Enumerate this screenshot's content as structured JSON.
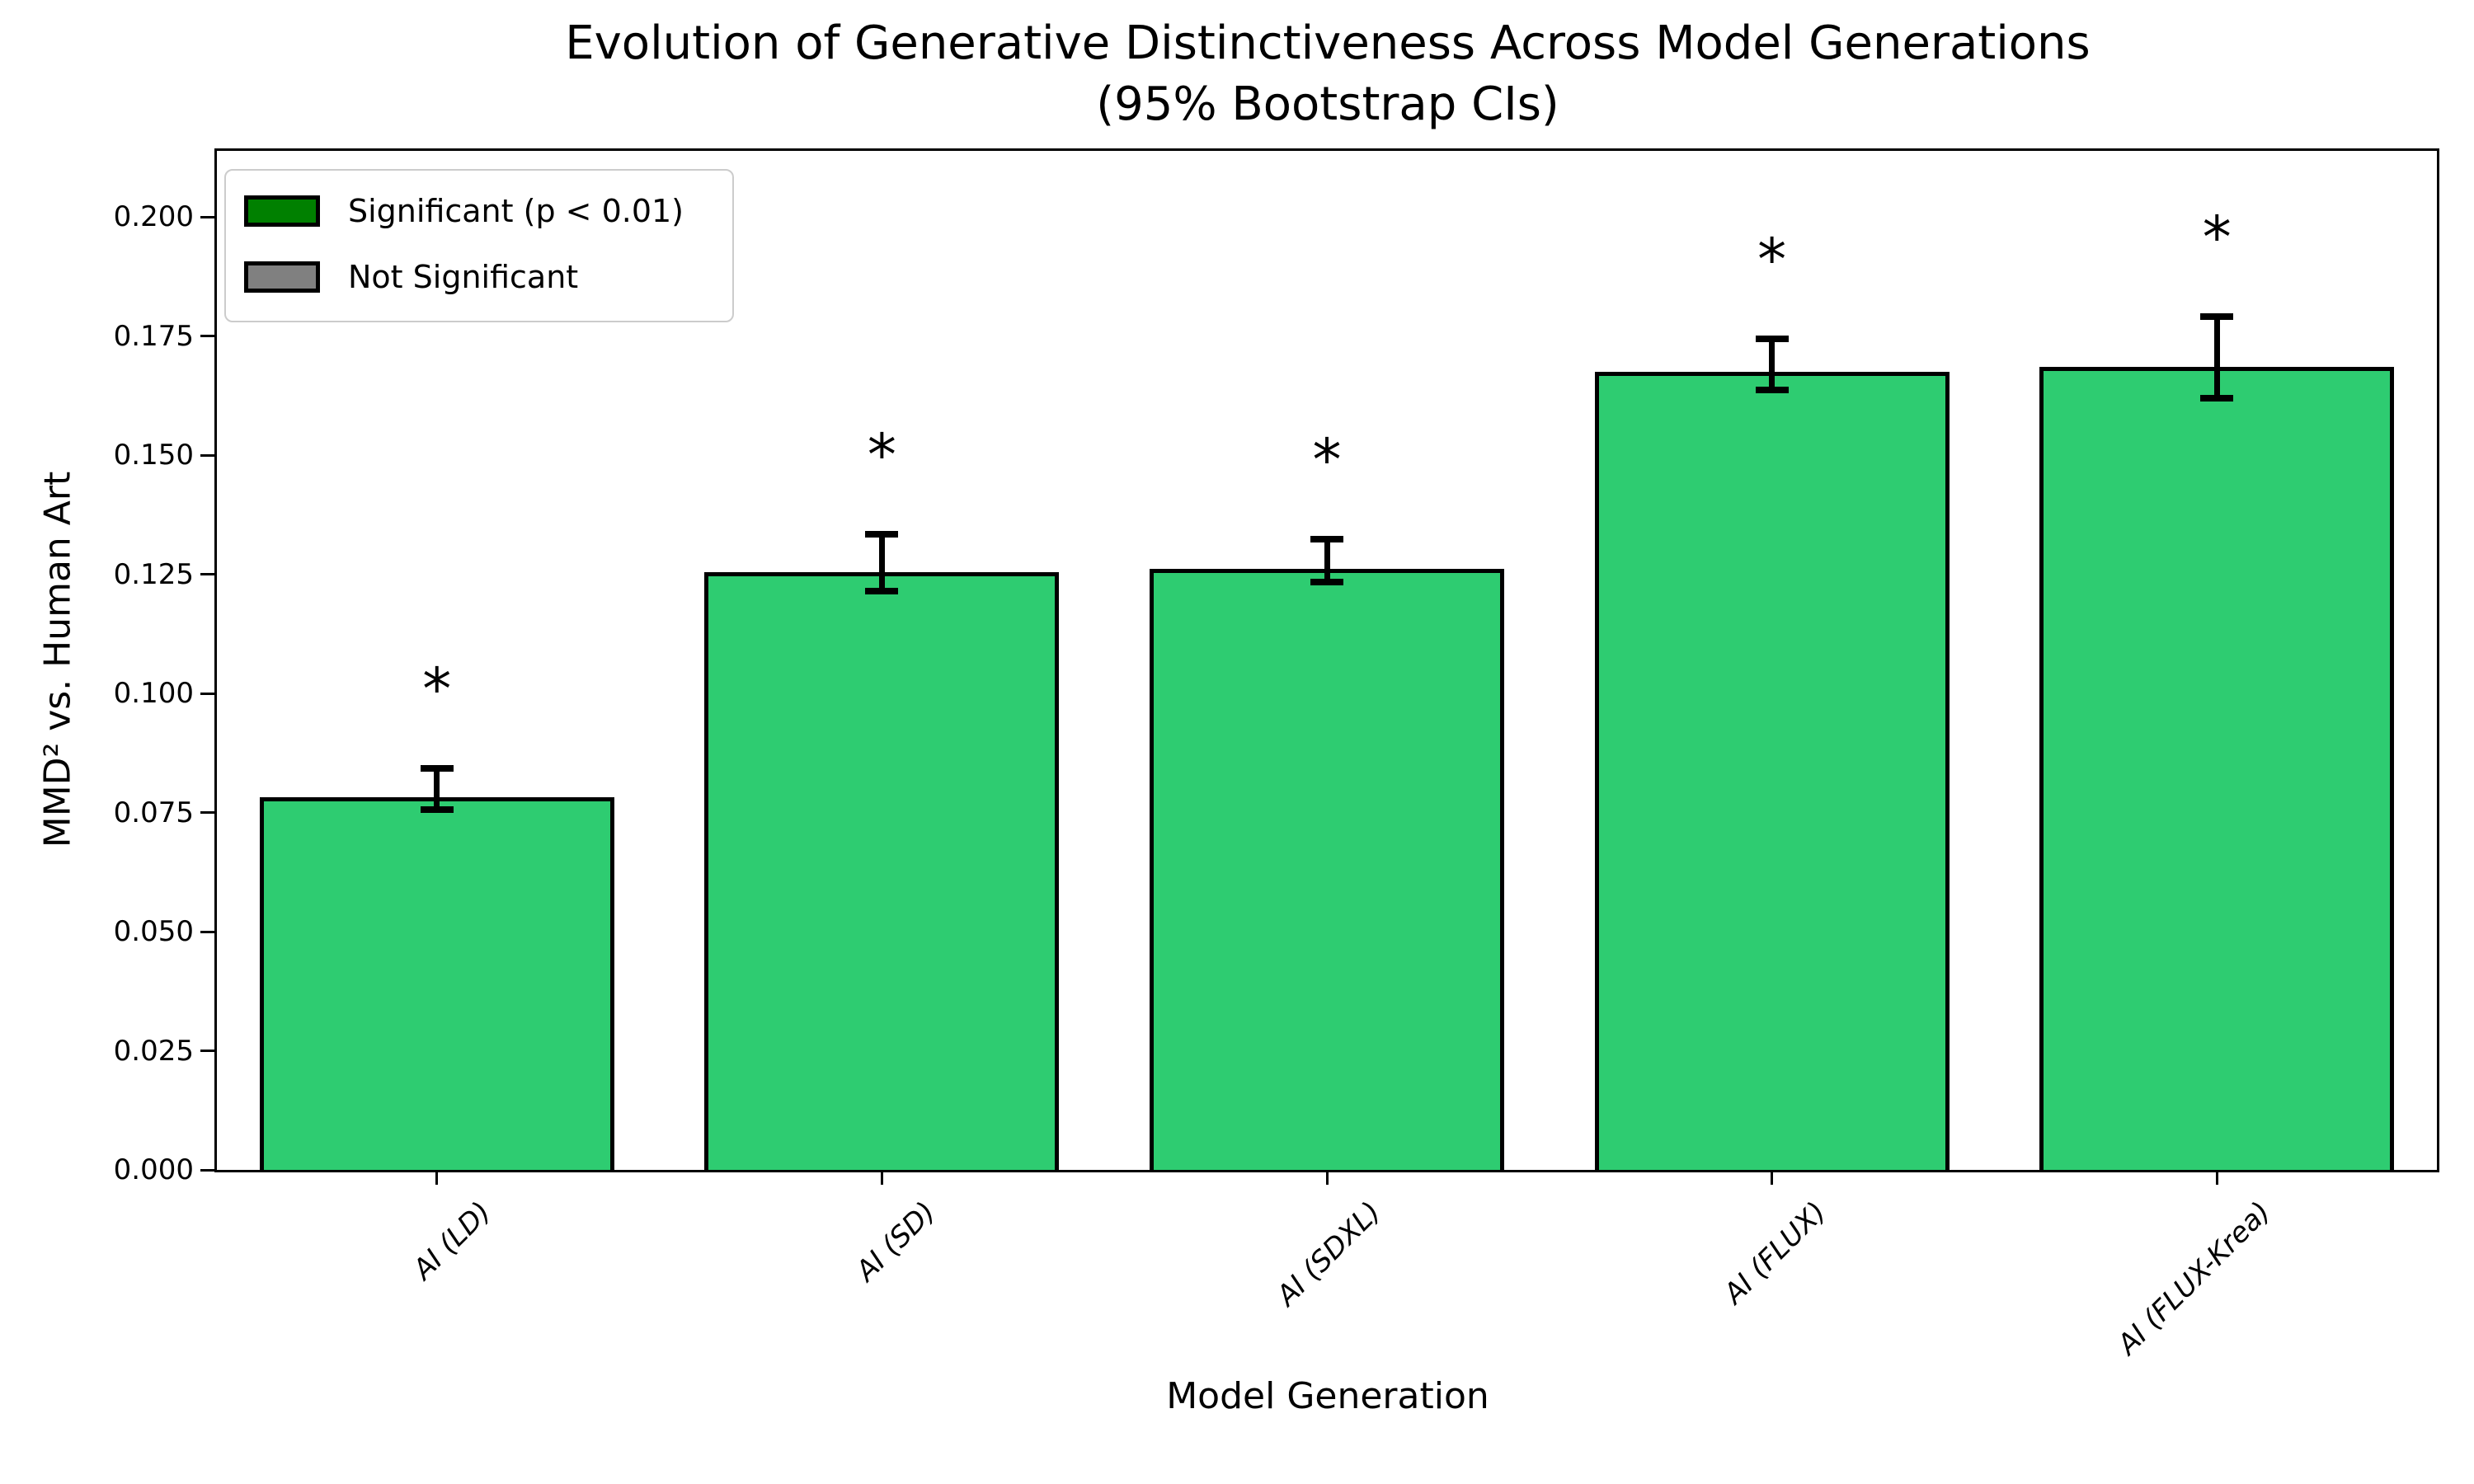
{
  "chart_data": {
    "type": "bar",
    "title": "Evolution of Generative Distinctiveness Across Model Generations",
    "subtitle": "(95% Bootstrap CIs)",
    "xlabel": "Model Generation",
    "ylabel": "MMD² vs. Human Art",
    "categories": [
      "AI (LD)",
      "AI (SD)",
      "AI (SDXL)",
      "AI (FLUX)",
      "AI (FLUX-Krea)"
    ],
    "values": [
      0.0782,
      0.1254,
      0.1262,
      0.1675,
      0.1686
    ],
    "ci_low": [
      0.0756,
      0.1214,
      0.1233,
      0.1637,
      0.1619
    ],
    "ci_high": [
      0.0843,
      0.1335,
      0.1323,
      0.1744,
      0.1791
    ],
    "significant": [
      true,
      true,
      true,
      true,
      true
    ],
    "sig_marker": "*",
    "ytick_labels": [
      "0.000",
      "0.025",
      "0.050",
      "0.075",
      "0.100",
      "0.125",
      "0.150",
      "0.175",
      "0.200"
    ],
    "ylim": [
      0,
      0.2144
    ],
    "grid": false,
    "legend_position": "upper-left",
    "legend": [
      {
        "label": "Significant (p < 0.01)",
        "color": "#008000"
      },
      {
        "label": "Not Significant",
        "color": "#808080"
      }
    ],
    "colors": {
      "bar_significant": "#2ecc71",
      "bar_not_significant": "#808080",
      "bar_edge": "#000000",
      "error_bar": "#000000",
      "text": "#000000",
      "background": "#ffffff"
    }
  }
}
